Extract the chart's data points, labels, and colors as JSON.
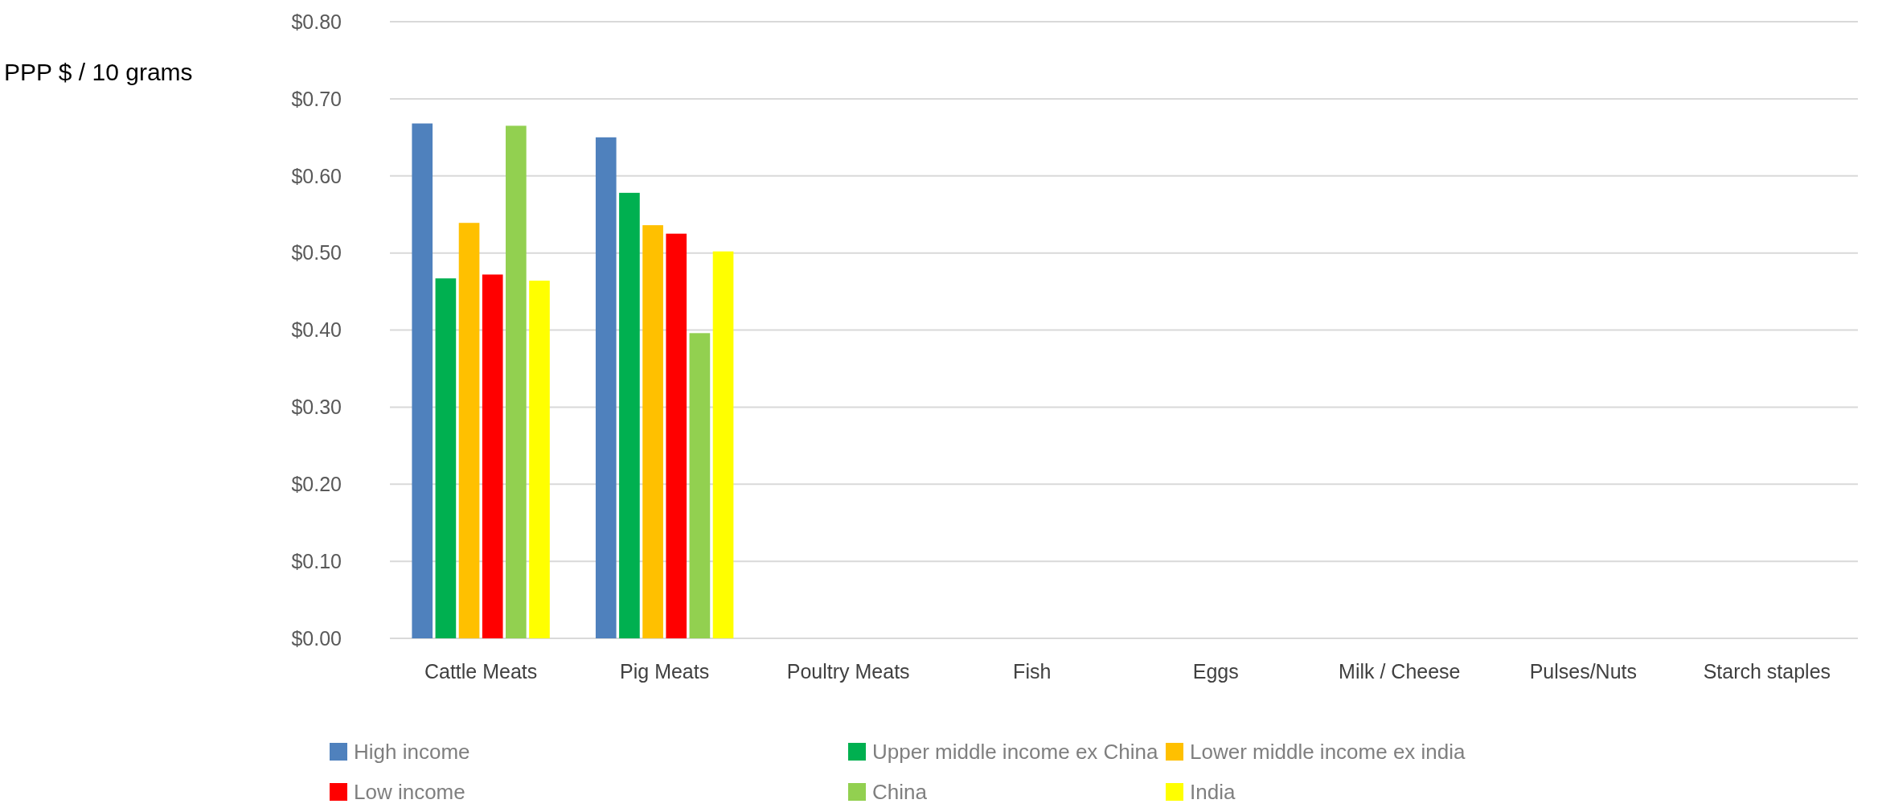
{
  "chart_data": {
    "type": "bar",
    "ylabel": "PPP $ / 10 grams",
    "categories": [
      "Cattle Meats",
      "Pig Meats",
      "Poultry Meats",
      "Fish",
      "Eggs",
      "Milk / Cheese",
      "Pulses/Nuts",
      "Starch staples"
    ],
    "series": [
      {
        "name": "High income",
        "color": "#4f81bd",
        "values": [
          0.668,
          0.65,
          null,
          null,
          null,
          null,
          null,
          null
        ]
      },
      {
        "name": "Upper middle income ex China",
        "color": "#00b050",
        "values": [
          0.467,
          0.578,
          null,
          null,
          null,
          null,
          null,
          null
        ]
      },
      {
        "name": "Lower middle income ex india",
        "color": "#ffc000",
        "values": [
          0.539,
          0.536,
          null,
          null,
          null,
          null,
          null,
          null
        ]
      },
      {
        "name": "Low income",
        "color": "#ff0000",
        "values": [
          0.472,
          0.525,
          null,
          null,
          null,
          null,
          null,
          null
        ]
      },
      {
        "name": "China",
        "color": "#92d050",
        "values": [
          0.665,
          0.396,
          null,
          null,
          null,
          null,
          null,
          null
        ]
      },
      {
        "name": "India",
        "color": "#ffff00",
        "values": [
          0.464,
          0.502,
          null,
          null,
          null,
          null,
          null,
          null
        ]
      }
    ],
    "ylim": [
      0,
      0.8
    ],
    "yticks": [
      {
        "value": 0,
        "label": "$0.00"
      },
      {
        "value": 0.1,
        "label": "$0.10"
      },
      {
        "value": 0.2,
        "label": "$0.20"
      },
      {
        "value": 0.3,
        "label": "$0.30"
      },
      {
        "value": 0.4,
        "label": "$0.40"
      },
      {
        "value": 0.5,
        "label": "$0.50"
      },
      {
        "value": 0.6,
        "label": "$0.60"
      },
      {
        "value": 0.7,
        "label": "$0.70"
      },
      {
        "value": 0.8,
        "label": "$0.80"
      }
    ],
    "grid": "y",
    "legend": "bottom"
  }
}
